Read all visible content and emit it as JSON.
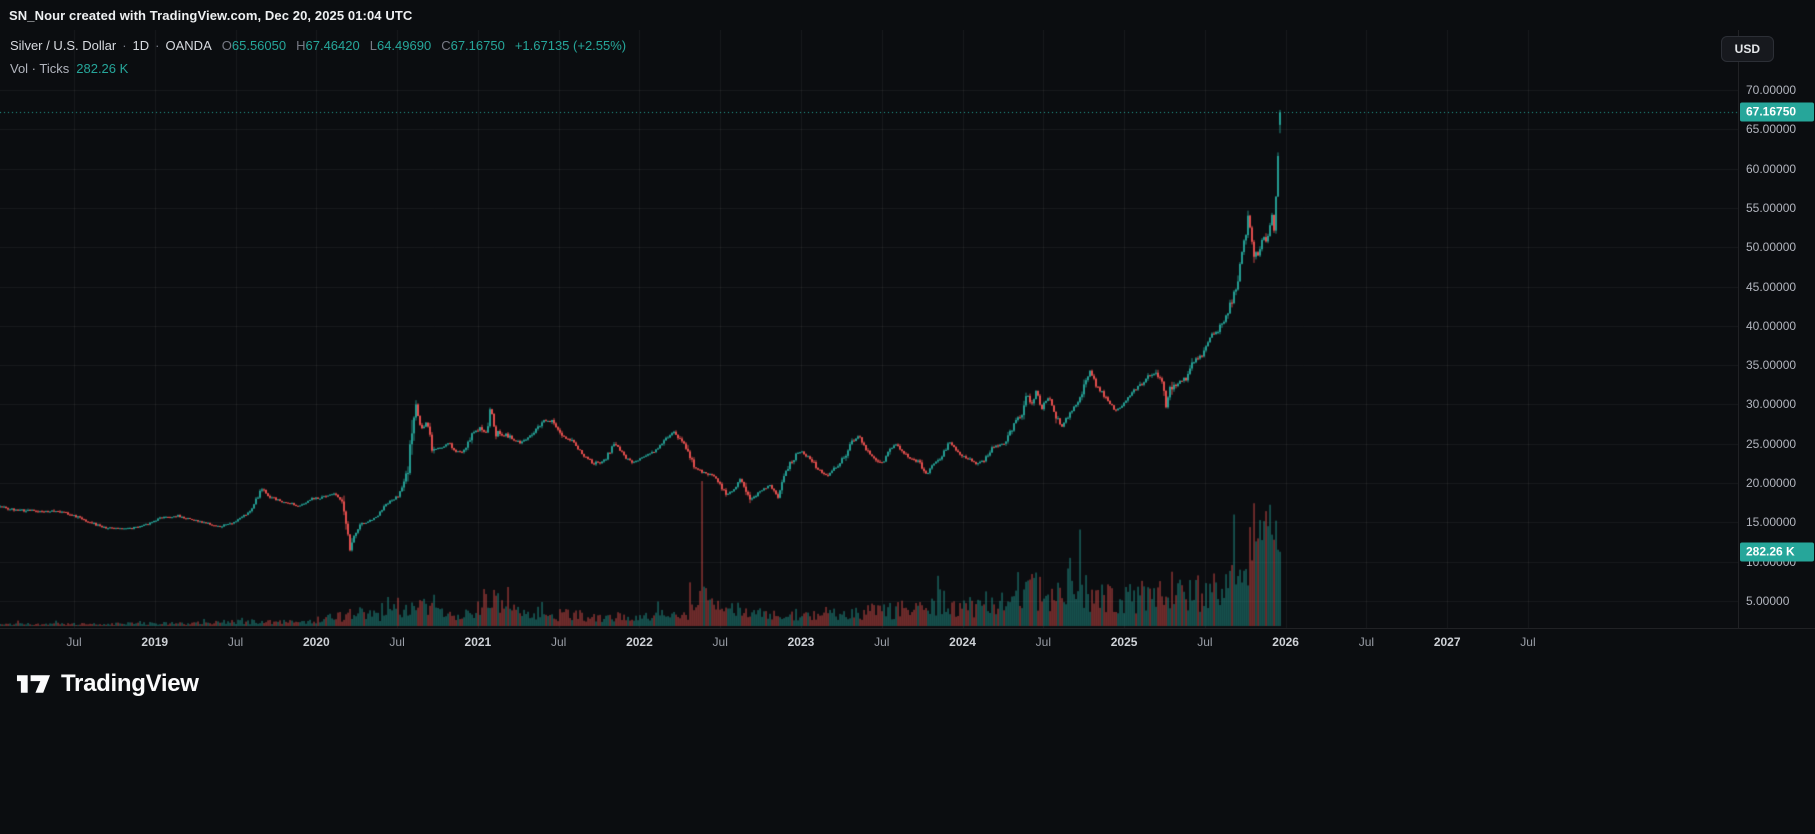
{
  "header": {
    "attribution": "SN_Nour created with TradingView.com, Dec 20, 2025 01:04 UTC"
  },
  "legend": {
    "symbol_title": "Silver / U.S. Dollar",
    "separator": "·",
    "interval": "1D",
    "exchange": "OANDA",
    "open_label": "O",
    "open_value": "65.56050",
    "high_label": "H",
    "high_value": "67.46420",
    "low_label": "L",
    "low_value": "64.49690",
    "close_label": "C",
    "close_value": "67.16750",
    "change_text": "+1.67135 (+2.55%)",
    "volume_label": "Vol · Ticks",
    "volume_value": "282.26 K"
  },
  "price_axis": {
    "currency_button_label": "USD",
    "last_price_label": "67.16750",
    "last_volume_label": "282.26 K",
    "ticks": [
      {
        "label": "70.00000",
        "value": 70
      },
      {
        "label": "65.00000",
        "value": 65
      },
      {
        "label": "60.00000",
        "value": 60
      },
      {
        "label": "55.00000",
        "value": 55
      },
      {
        "label": "50.00000",
        "value": 50
      },
      {
        "label": "45.00000",
        "value": 45
      },
      {
        "label": "40.00000",
        "value": 40
      },
      {
        "label": "35.00000",
        "value": 35
      },
      {
        "label": "30.00000",
        "value": 30
      },
      {
        "label": "25.00000",
        "value": 25
      },
      {
        "label": "20.00000",
        "value": 20
      },
      {
        "label": "15.00000",
        "value": 15
      },
      {
        "label": "10.00000",
        "value": 10
      },
      {
        "label": "5.00000",
        "value": 5
      }
    ]
  },
  "time_axis": {
    "ticks": [
      {
        "label": "Jul",
        "t": 2018.5,
        "major": false
      },
      {
        "label": "2019",
        "t": 2019.0,
        "major": true
      },
      {
        "label": "Jul",
        "t": 2019.5,
        "major": false
      },
      {
        "label": "2020",
        "t": 2020.0,
        "major": true
      },
      {
        "label": "Jul",
        "t": 2020.5,
        "major": false
      },
      {
        "label": "2021",
        "t": 2021.0,
        "major": true
      },
      {
        "label": "Jul",
        "t": 2021.5,
        "major": false
      },
      {
        "label": "2022",
        "t": 2022.0,
        "major": true
      },
      {
        "label": "Jul",
        "t": 2022.5,
        "major": false
      },
      {
        "label": "2023",
        "t": 2023.0,
        "major": true
      },
      {
        "label": "Jul",
        "t": 2023.5,
        "major": false
      },
      {
        "label": "2024",
        "t": 2024.0,
        "major": true
      },
      {
        "label": "Jul",
        "t": 2024.5,
        "major": false
      },
      {
        "label": "2025",
        "t": 2025.0,
        "major": true
      },
      {
        "label": "Jul",
        "t": 2025.5,
        "major": false
      },
      {
        "label": "2026",
        "t": 2026.0,
        "major": true
      },
      {
        "label": "Jul",
        "t": 2026.5,
        "major": false
      },
      {
        "label": "2027",
        "t": 2027.0,
        "major": true
      },
      {
        "label": "Jul",
        "t": 2027.5,
        "major": false
      }
    ]
  },
  "footer": {
    "brand_name": "TradingView"
  },
  "colors": {
    "background": "#0b0d10",
    "up": "#26a69a",
    "down": "#ef5350",
    "volume_up": "rgba(38,166,154,0.55)",
    "volume_down": "rgba(239,83,80,0.55)",
    "grid": "rgba(255,255,255,0.055)",
    "axis_text": "#b2b5be",
    "muted_text": "#787b86",
    "badge_text": "#ffffff"
  },
  "chart_data": {
    "type": "candlestick",
    "title": "Silver / U.S. Dollar · 1D · OANDA",
    "symbol": "Silver / U.S. Dollar",
    "interval": "1D",
    "exchange": "OANDA",
    "quote_currency": "USD",
    "ohlc_last": {
      "open": 65.5605,
      "high": 67.4642,
      "low": 64.4969,
      "close": 67.1675
    },
    "change": 1.67135,
    "change_pct": 2.55,
    "volume_last_ticks_k": 282.26,
    "x_domain_decimal_years": [
      2018.042,
      2028.8
    ],
    "data_end_decimal_year": 2025.972,
    "price_domain": [
      1.56,
      77.63
    ],
    "volume_axis_max_k": 570,
    "price_path": [
      [
        2018.04,
        17.0
      ],
      [
        2018.15,
        16.6
      ],
      [
        2018.3,
        16.4
      ],
      [
        2018.45,
        16.3
      ],
      [
        2018.55,
        15.5
      ],
      [
        2018.7,
        14.3
      ],
      [
        2018.85,
        14.2
      ],
      [
        2018.95,
        14.6
      ],
      [
        2019.05,
        15.6
      ],
      [
        2019.15,
        15.8
      ],
      [
        2019.3,
        15.1
      ],
      [
        2019.4,
        14.5
      ],
      [
        2019.5,
        15.0
      ],
      [
        2019.6,
        16.3
      ],
      [
        2019.67,
        19.3
      ],
      [
        2019.73,
        18.2
      ],
      [
        2019.8,
        17.6
      ],
      [
        2019.9,
        17.1
      ],
      [
        2019.98,
        17.9
      ],
      [
        2020.05,
        18.1
      ],
      [
        2020.13,
        18.6
      ],
      [
        2020.18,
        17.6
      ],
      [
        2020.22,
        12.1
      ],
      [
        2020.28,
        14.6
      ],
      [
        2020.38,
        15.6
      ],
      [
        2020.45,
        17.4
      ],
      [
        2020.52,
        18.3
      ],
      [
        2020.56,
        20.0
      ],
      [
        2020.59,
        23.2
      ],
      [
        2020.61,
        28.2
      ],
      [
        2020.63,
        29.4
      ],
      [
        2020.66,
        26.8
      ],
      [
        2020.7,
        27.8
      ],
      [
        2020.73,
        24.0
      ],
      [
        2020.78,
        24.5
      ],
      [
        2020.84,
        25.0
      ],
      [
        2020.88,
        23.8
      ],
      [
        2020.93,
        24.2
      ],
      [
        2020.98,
        26.4
      ],
      [
        2021.03,
        27.0
      ],
      [
        2021.07,
        26.2
      ],
      [
        2021.09,
        29.9
      ],
      [
        2021.12,
        26.3
      ],
      [
        2021.2,
        26.0
      ],
      [
        2021.28,
        25.0
      ],
      [
        2021.35,
        26.3
      ],
      [
        2021.42,
        27.9
      ],
      [
        2021.48,
        27.8
      ],
      [
        2021.53,
        26.0
      ],
      [
        2021.6,
        25.3
      ],
      [
        2021.67,
        23.4
      ],
      [
        2021.73,
        22.4
      ],
      [
        2021.8,
        23.0
      ],
      [
        2021.86,
        25.2
      ],
      [
        2021.92,
        23.3
      ],
      [
        2021.98,
        22.6
      ],
      [
        2022.05,
        23.5
      ],
      [
        2022.12,
        24.2
      ],
      [
        2022.18,
        25.8
      ],
      [
        2022.22,
        26.5
      ],
      [
        2022.3,
        24.6
      ],
      [
        2022.36,
        21.8
      ],
      [
        2022.42,
        21.3
      ],
      [
        2022.48,
        20.7
      ],
      [
        2022.55,
        18.6
      ],
      [
        2022.6,
        19.2
      ],
      [
        2022.64,
        20.6
      ],
      [
        2022.7,
        17.8
      ],
      [
        2022.76,
        18.9
      ],
      [
        2022.82,
        19.7
      ],
      [
        2022.87,
        18.3
      ],
      [
        2022.92,
        21.3
      ],
      [
        2022.97,
        23.3
      ],
      [
        2023.0,
        24.0
      ],
      [
        2023.05,
        23.5
      ],
      [
        2023.12,
        21.8
      ],
      [
        2023.17,
        20.9
      ],
      [
        2023.22,
        21.8
      ],
      [
        2023.28,
        23.3
      ],
      [
        2023.32,
        25.1
      ],
      [
        2023.37,
        26.0
      ],
      [
        2023.42,
        24.1
      ],
      [
        2023.47,
        23.2
      ],
      [
        2023.52,
        22.5
      ],
      [
        2023.56,
        24.2
      ],
      [
        2023.6,
        25.0
      ],
      [
        2023.65,
        23.8
      ],
      [
        2023.7,
        23.0
      ],
      [
        2023.75,
        22.6
      ],
      [
        2023.78,
        21.0
      ],
      [
        2023.83,
        22.3
      ],
      [
        2023.88,
        23.3
      ],
      [
        2023.93,
        25.2
      ],
      [
        2023.98,
        24.0
      ],
      [
        2024.04,
        23.1
      ],
      [
        2024.1,
        22.4
      ],
      [
        2024.15,
        23.0
      ],
      [
        2024.2,
        24.6
      ],
      [
        2024.27,
        25.0
      ],
      [
        2024.33,
        27.5
      ],
      [
        2024.38,
        28.8
      ],
      [
        2024.41,
        31.5
      ],
      [
        2024.44,
        30.0
      ],
      [
        2024.47,
        31.8
      ],
      [
        2024.5,
        29.5
      ],
      [
        2024.55,
        31.0
      ],
      [
        2024.58,
        29.0
      ],
      [
        2024.62,
        27.2
      ],
      [
        2024.67,
        28.6
      ],
      [
        2024.72,
        30.0
      ],
      [
        2024.76,
        32.0
      ],
      [
        2024.8,
        34.3
      ],
      [
        2024.84,
        32.5
      ],
      [
        2024.88,
        31.2
      ],
      [
        2024.92,
        30.2
      ],
      [
        2024.96,
        29.2
      ],
      [
        2025.0,
        29.8
      ],
      [
        2025.05,
        31.3
      ],
      [
        2025.1,
        32.3
      ],
      [
        2025.15,
        33.3
      ],
      [
        2025.2,
        34.0
      ],
      [
        2025.24,
        33.3
      ],
      [
        2025.27,
        29.5
      ],
      [
        2025.3,
        32.3
      ],
      [
        2025.35,
        32.8
      ],
      [
        2025.4,
        33.2
      ],
      [
        2025.45,
        35.8
      ],
      [
        2025.5,
        36.4
      ],
      [
        2025.55,
        38.5
      ],
      [
        2025.6,
        39.5
      ],
      [
        2025.65,
        41.5
      ],
      [
        2025.7,
        44.5
      ],
      [
        2025.73,
        47.0
      ],
      [
        2025.76,
        51.5
      ],
      [
        2025.78,
        54.2
      ],
      [
        2025.8,
        51.5
      ],
      [
        2025.82,
        48.5
      ],
      [
        2025.85,
        49.5
      ],
      [
        2025.87,
        51.5
      ],
      [
        2025.89,
        50.5
      ],
      [
        2025.91,
        52.0
      ],
      [
        2025.925,
        54.5
      ],
      [
        2025.94,
        52.5
      ],
      [
        2025.955,
        57.5
      ],
      [
        2025.965,
        62.0
      ],
      [
        2025.972,
        67.0
      ]
    ],
    "volume_path_k": [
      [
        2018.04,
        7
      ],
      [
        2018.5,
        8
      ],
      [
        2019.2,
        10
      ],
      [
        2019.7,
        18
      ],
      [
        2019.95,
        14
      ],
      [
        2020.18,
        40
      ],
      [
        2020.25,
        55
      ],
      [
        2020.4,
        30
      ],
      [
        2020.58,
        95
      ],
      [
        2020.65,
        70
      ],
      [
        2020.8,
        45
      ],
      [
        2020.95,
        40
      ],
      [
        2021.07,
        110
      ],
      [
        2021.2,
        55
      ],
      [
        2021.45,
        45
      ],
      [
        2021.7,
        35
      ],
      [
        2021.95,
        32
      ],
      [
        2022.15,
        40
      ],
      [
        2022.3,
        55
      ],
      [
        2022.36,
        70
      ],
      [
        2022.378,
        90
      ],
      [
        2022.386,
        555
      ],
      [
        2022.394,
        95
      ],
      [
        2022.55,
        60
      ],
      [
        2022.75,
        45
      ],
      [
        2023.0,
        42
      ],
      [
        2023.25,
        50
      ],
      [
        2023.5,
        58
      ],
      [
        2023.75,
        65
      ],
      [
        2024.0,
        72
      ],
      [
        2024.25,
        90
      ],
      [
        2024.42,
        160
      ],
      [
        2024.55,
        95
      ],
      [
        2024.7,
        200
      ],
      [
        2024.78,
        120
      ],
      [
        2024.95,
        100
      ],
      [
        2025.1,
        105
      ],
      [
        2025.3,
        130
      ],
      [
        2025.5,
        120
      ],
      [
        2025.65,
        150
      ],
      [
        2025.75,
        200
      ],
      [
        2025.82,
        320
      ],
      [
        2025.88,
        430
      ],
      [
        2025.92,
        380
      ],
      [
        2025.95,
        340
      ],
      [
        2025.972,
        282
      ]
    ]
  }
}
